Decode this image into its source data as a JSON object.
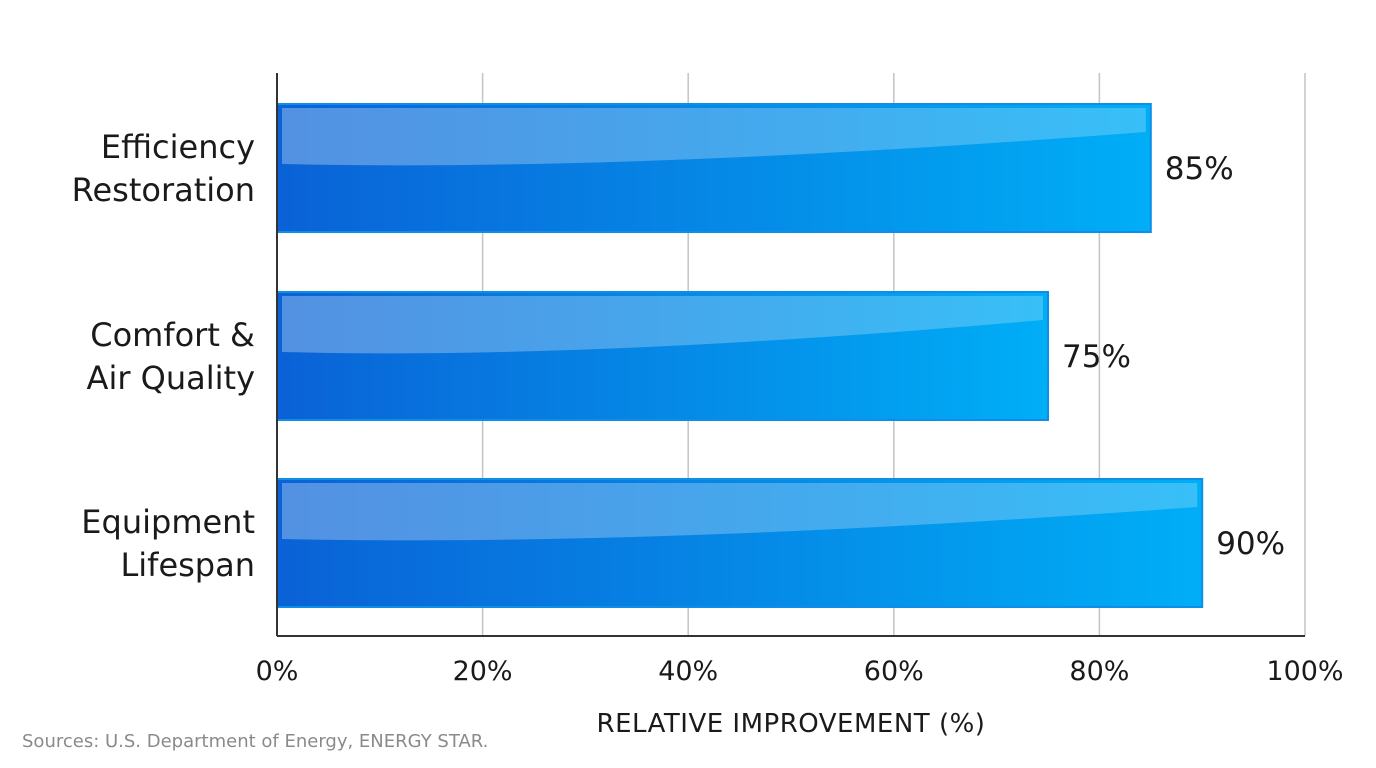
{
  "chart_data": {
    "type": "bar",
    "orientation": "horizontal",
    "categories": [
      [
        "Efficiency",
        "Restoration"
      ],
      [
        "Comfort &",
        "Air Quality"
      ],
      [
        "Equipment",
        "Lifespan"
      ]
    ],
    "values": [
      85,
      75,
      90
    ],
    "value_labels": [
      "85%",
      "75%",
      "90%"
    ],
    "xlabel": "RELATIVE IMPROVEMENT (%)",
    "xlim": [
      0,
      100
    ],
    "xticks": [
      0,
      20,
      40,
      60,
      80,
      100
    ],
    "xtick_labels": [
      "0%",
      "20%",
      "40%",
      "60%",
      "80%",
      "100%"
    ],
    "grid": "vertical",
    "legend": "none",
    "colors": {
      "bar_left": "#0a62d6",
      "bar_right": "#00aef6",
      "bar_stroke": "#0f8ee8",
      "gridline": "#c4c4c4",
      "axis": "#333333"
    }
  },
  "source": "Sources: U.S. Department of Energy, ENERGY STAR."
}
